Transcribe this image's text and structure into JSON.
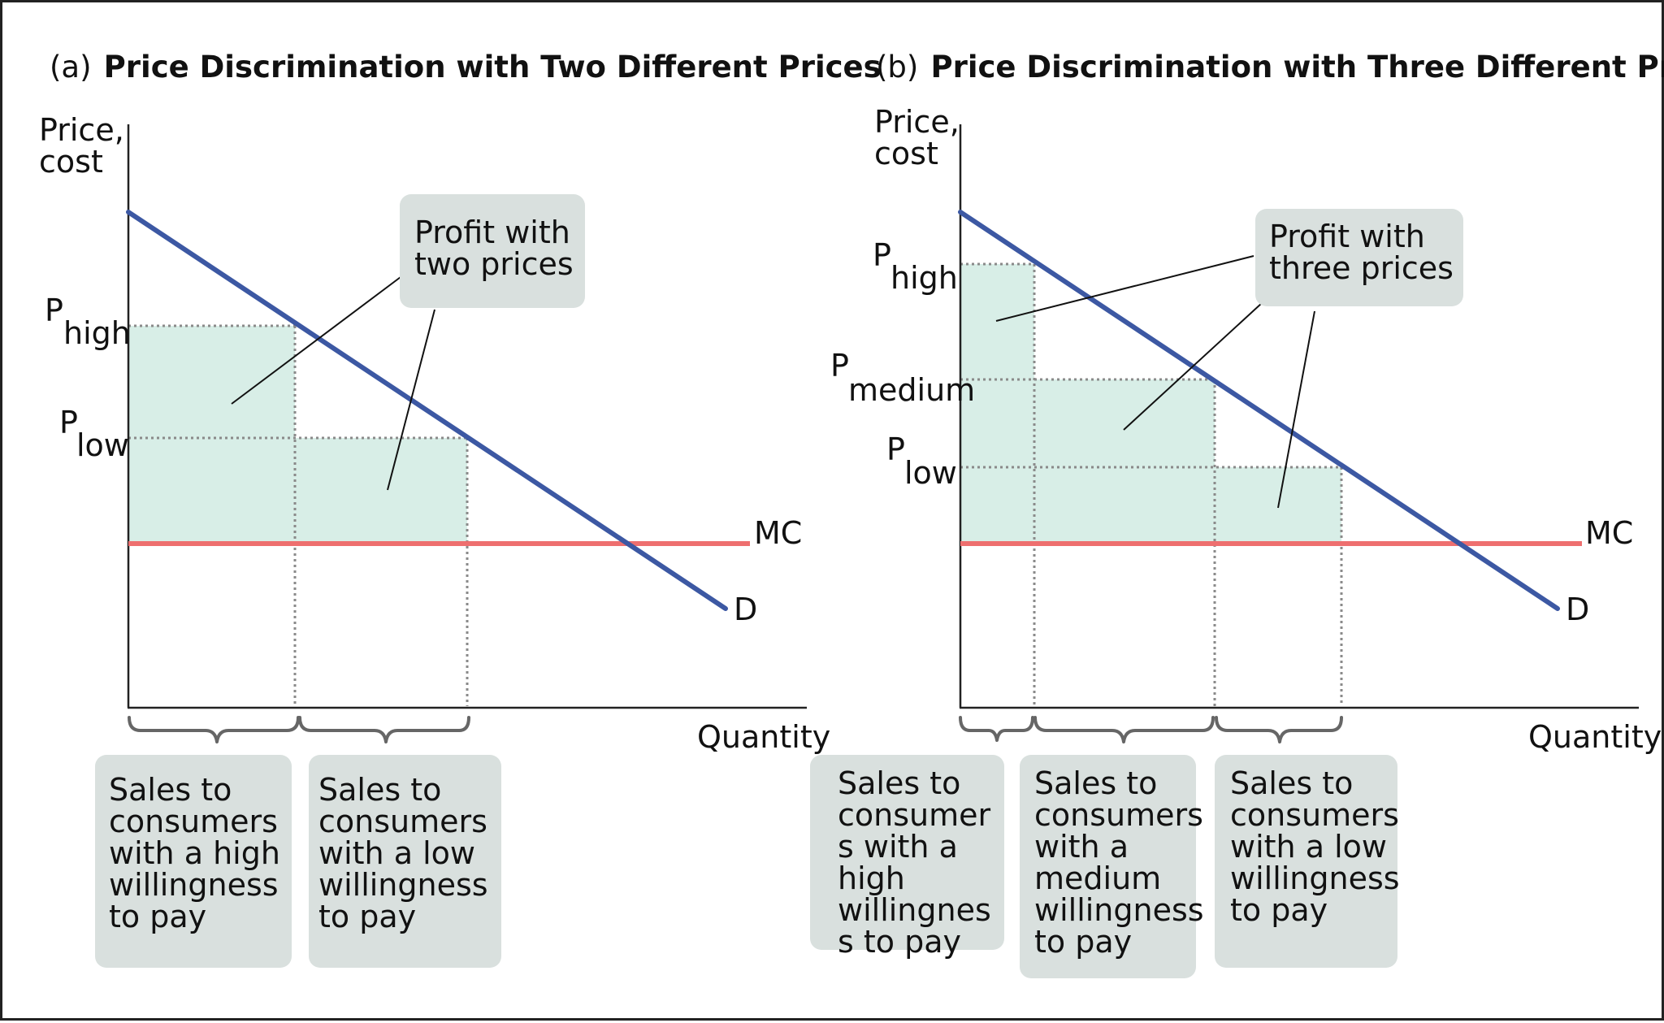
{
  "panel_a": {
    "title_prefix": "(a)",
    "title": "Price Discrimination with Two Different Prices",
    "ylabel_line1": "Price,",
    "ylabel_line2": "cost",
    "xlabel": "Quantity",
    "price_labels": [
      {
        "letter": "P",
        "sub": "high"
      },
      {
        "letter": "P",
        "sub": "low"
      }
    ],
    "mc_label": "MC",
    "demand_label": "D",
    "profit_callout": [
      "Profit with",
      "two prices"
    ],
    "sales_boxes": [
      [
        "Sales to",
        "consumers",
        "with a high",
        "willingness",
        "to pay"
      ],
      [
        "Sales to",
        "consumers",
        "with a low",
        "willingness",
        "to pay"
      ]
    ]
  },
  "panel_b": {
    "title_prefix": "(b)",
    "title": "Price Discrimination with Three Different Prices",
    "ylabel_line1": "Price,",
    "ylabel_line2": "cost",
    "xlabel": "Quantity",
    "price_labels": [
      {
        "letter": "P",
        "sub": "high"
      },
      {
        "letter": "P",
        "sub": "medium"
      },
      {
        "letter": "P",
        "sub": "low"
      }
    ],
    "mc_label": "MC",
    "demand_label": "D",
    "profit_callout": [
      "Profit with",
      "three prices"
    ],
    "sales_boxes": [
      [
        "Sales to",
        "consumer",
        "s with a",
        "high",
        "willingnes",
        "s to pay"
      ],
      [
        "Sales to",
        "consumers",
        "with a",
        "medium",
        "willingness",
        "to pay"
      ],
      [
        "Sales to",
        "consumers",
        "with a low",
        "willingness",
        "to pay"
      ]
    ]
  },
  "colors": {
    "demand": "#3c58a3",
    "mc": "#ee6f6f",
    "profit_fill": "#d8eee7",
    "callout_fill": "#d9e0de"
  }
}
